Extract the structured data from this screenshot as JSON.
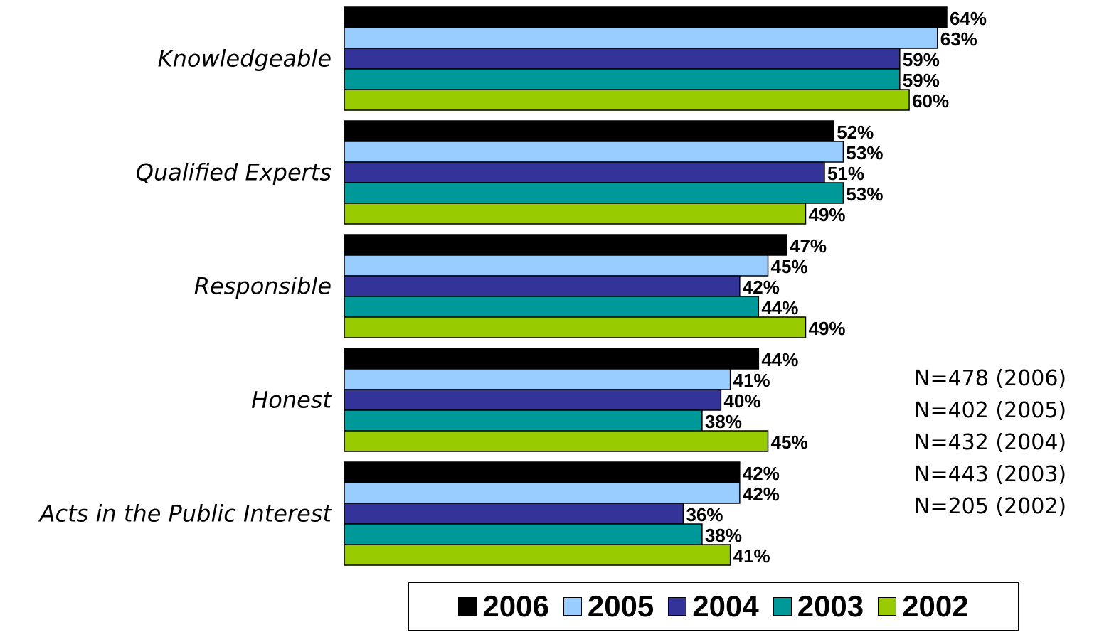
{
  "chart_data": {
    "type": "bar",
    "orientation": "horizontal",
    "categories": [
      "Knowledgeable",
      "Qualified Experts",
      "Responsible",
      "Honest",
      "Acts in the Public Interest"
    ],
    "series": [
      {
        "name": "2006",
        "color": "#000000",
        "values": [
          64,
          52,
          47,
          44,
          42
        ]
      },
      {
        "name": "2005",
        "color": "#99ccff",
        "values": [
          63,
          53,
          45,
          41,
          42
        ]
      },
      {
        "name": "2004",
        "color": "#333399",
        "values": [
          59,
          51,
          42,
          40,
          36
        ]
      },
      {
        "name": "2003",
        "color": "#009999",
        "values": [
          59,
          53,
          44,
          38,
          38
        ]
      },
      {
        "name": "2002",
        "color": "#99cc00",
        "values": [
          60,
          49,
          49,
          45,
          41
        ]
      }
    ],
    "value_suffix": "%",
    "xlim": [
      0,
      100
    ],
    "grid": false,
    "legend": "bottom",
    "title": "",
    "xlabel": "",
    "ylabel": ""
  },
  "sample_notes": [
    "N=478 (2006)",
    "N=402 (2005)",
    "N=432 (2004)",
    "N=443 (2003)",
    "N=205 (2002)"
  ]
}
